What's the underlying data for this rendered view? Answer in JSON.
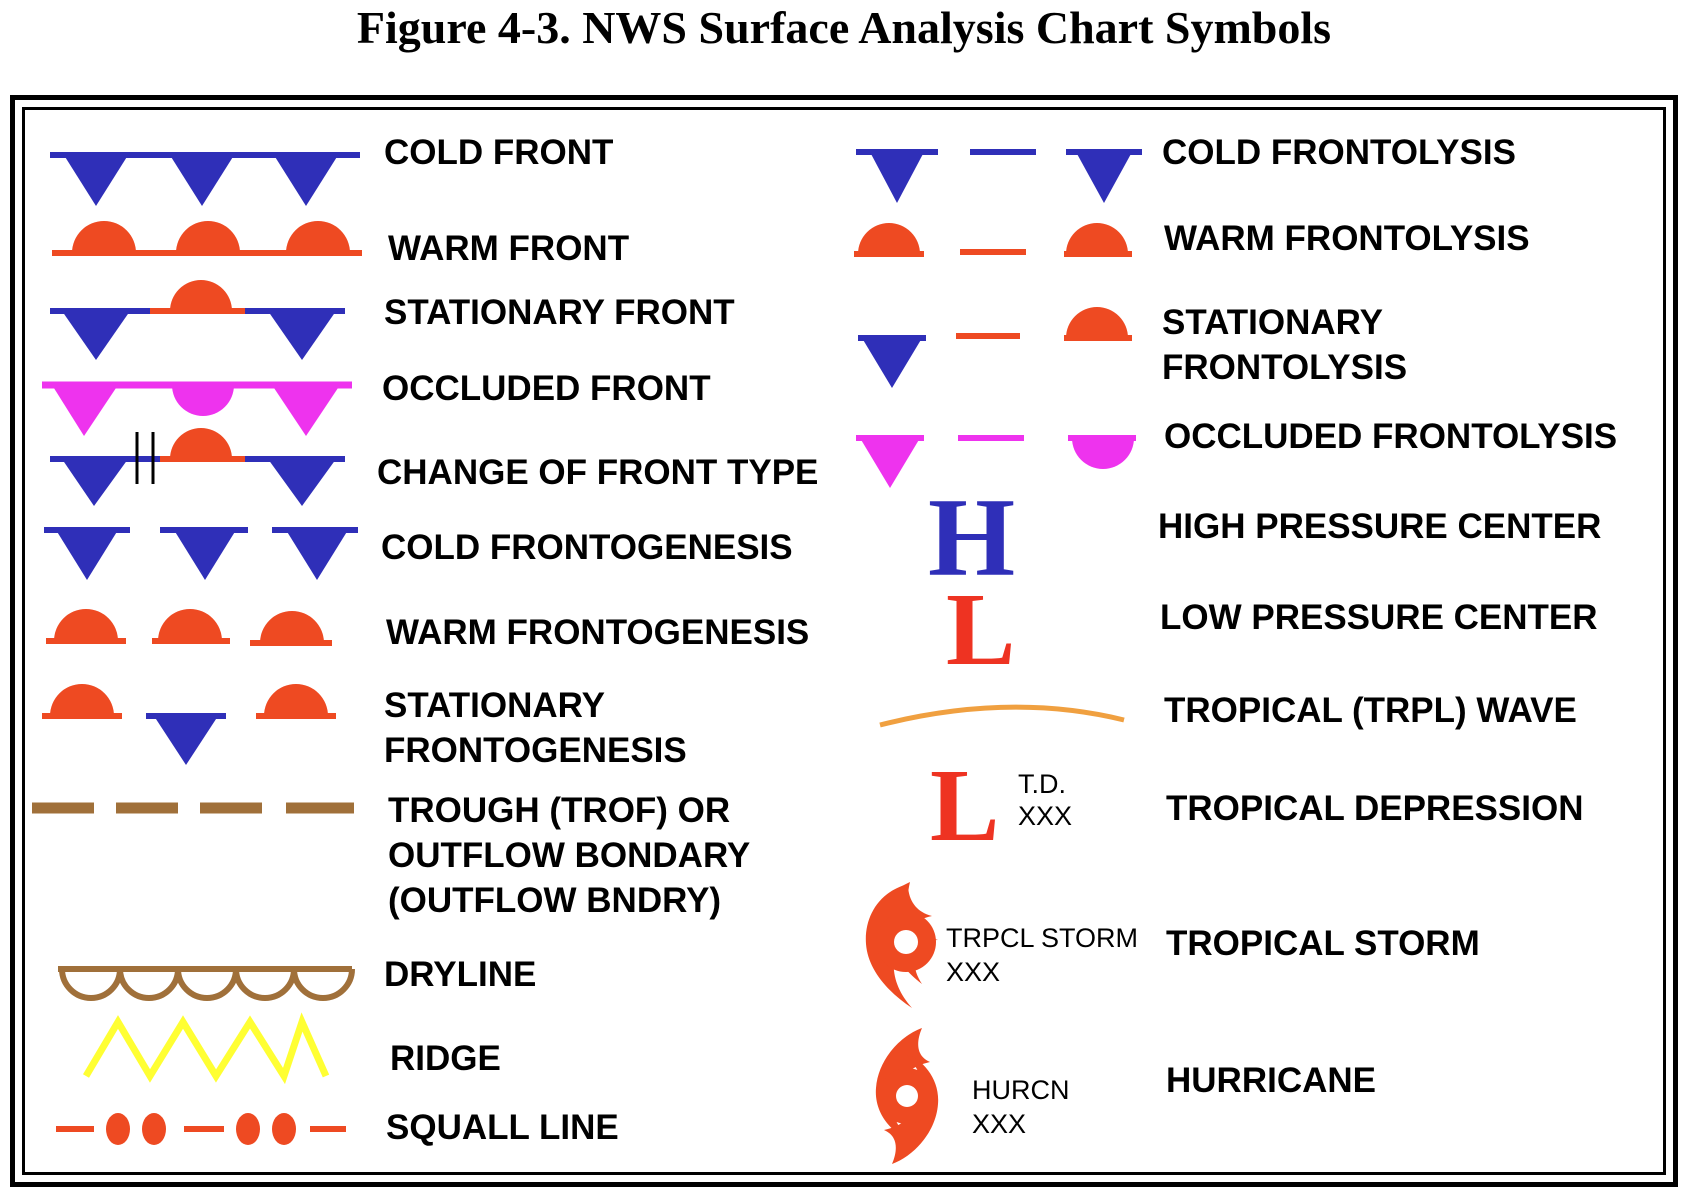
{
  "title": "Figure 4-3. NWS Surface Analysis Chart Symbols",
  "colors": {
    "cold": "#2f2fb8",
    "warm": "#ee4a22",
    "occluded": "#ee33ee",
    "trough": "#a0703a",
    "dryline": "#a0703a",
    "ridge": "#ffff33",
    "tropical_wave": "#f0a040"
  },
  "left_column": [
    {
      "symbol": "cold-front",
      "label": "COLD FRONT"
    },
    {
      "symbol": "warm-front",
      "label": "WARM FRONT"
    },
    {
      "symbol": "stationary-front",
      "label": "STATIONARY FRONT"
    },
    {
      "symbol": "occluded-front",
      "label": "OCCLUDED FRONT"
    },
    {
      "symbol": "change-of-front-type",
      "label": "CHANGE OF FRONT TYPE"
    },
    {
      "symbol": "cold-frontogenesis",
      "label": "COLD FRONTOGENESIS"
    },
    {
      "symbol": "warm-frontogenesis",
      "label": "WARM FRONTOGENESIS"
    },
    {
      "symbol": "stationary-frontogenesis",
      "label_lines": [
        "STATIONARY",
        "FRONTOGENESIS"
      ]
    },
    {
      "symbol": "trough",
      "label_lines": [
        "TROUGH (TROF) OR",
        "OUTFLOW BONDARY",
        "(OUTFLOW BNDRY)"
      ]
    },
    {
      "symbol": "dryline",
      "label": "DRYLINE"
    },
    {
      "symbol": "ridge",
      "label": "RIDGE"
    },
    {
      "symbol": "squall-line",
      "label": "SQUALL LINE"
    }
  ],
  "right_column": [
    {
      "symbol": "cold-frontolysis",
      "label": "COLD FRONTOLYSIS"
    },
    {
      "symbol": "warm-frontolysis",
      "label": "WARM FRONTOLYSIS"
    },
    {
      "symbol": "stationary-frontolysis",
      "label_lines": [
        "STATIONARY",
        "FRONTOLYSIS"
      ]
    },
    {
      "symbol": "occluded-frontolysis",
      "label": "OCCLUDED FRONTOLYSIS"
    },
    {
      "symbol": "high-pressure",
      "letter": "H",
      "label": "HIGH PRESSURE CENTER"
    },
    {
      "symbol": "low-pressure",
      "letter": "L",
      "label": "LOW PRESSURE CENTER"
    },
    {
      "symbol": "tropical-wave",
      "label": "TROPICAL (TRPL) WAVE"
    },
    {
      "symbol": "tropical-depression",
      "letter": "L",
      "annotation_lines": [
        "T.D.",
        "XXX"
      ],
      "label": "TROPICAL DEPRESSION"
    },
    {
      "symbol": "tropical-storm",
      "annotation_lines": [
        "TRPCL STORM",
        "XXX"
      ],
      "label": "TROPICAL STORM"
    },
    {
      "symbol": "hurricane",
      "annotation_lines": [
        "HURCN",
        "XXX"
      ],
      "label": "HURRICANE"
    }
  ]
}
